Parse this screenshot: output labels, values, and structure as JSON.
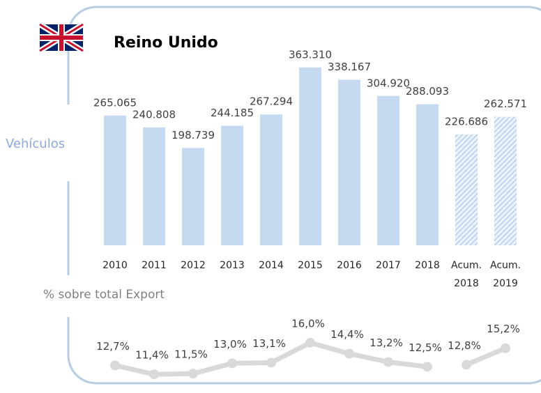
{
  "title": "Reino Unido",
  "chart_data": [
    {
      "type": "bar",
      "y_label": "Vehículos",
      "categories": [
        "2010",
        "2011",
        "2012",
        "2013",
        "2014",
        "2015",
        "2016",
        "2017",
        "2018",
        "Acum.\n2018",
        "Acum.\n2019"
      ],
      "values": [
        265065,
        240808,
        198739,
        244185,
        267294,
        363310,
        338167,
        304920,
        288093,
        226686,
        262571
      ],
      "value_labels": [
        "265.065",
        "240.808",
        "198.739",
        "244.185",
        "267.294",
        "363.310",
        "338.167",
        "304.920",
        "288.093",
        "226.686",
        "262.571"
      ],
      "color": "#c5d9f1",
      "patterns": [
        "solid",
        "solid",
        "solid",
        "solid",
        "solid",
        "solid",
        "solid",
        "solid",
        "solid",
        "hatch",
        "hatch"
      ],
      "ylim": [
        0,
        400000
      ]
    },
    {
      "type": "line",
      "y_label": "% sobre total Export",
      "color": "#d9d9d9",
      "ylim": [
        10,
        17
      ],
      "series": [
        {
          "values": [
            12.7,
            11.4,
            11.5,
            13.0,
            13.1,
            16.0,
            14.4,
            13.2,
            12.5,
            null,
            null
          ],
          "value_labels": [
            "12,7%",
            "11,4%",
            "11,5%",
            "13,0%",
            "13,1%",
            "16,0%",
            "14,4%",
            "13,2%",
            "12,5%",
            null,
            null
          ]
        },
        {
          "values": [
            null,
            null,
            null,
            null,
            null,
            null,
            null,
            null,
            null,
            12.8,
            15.2
          ],
          "value_labels": [
            null,
            null,
            null,
            null,
            null,
            null,
            null,
            null,
            null,
            "12,8%",
            "15,2%"
          ]
        }
      ]
    }
  ]
}
